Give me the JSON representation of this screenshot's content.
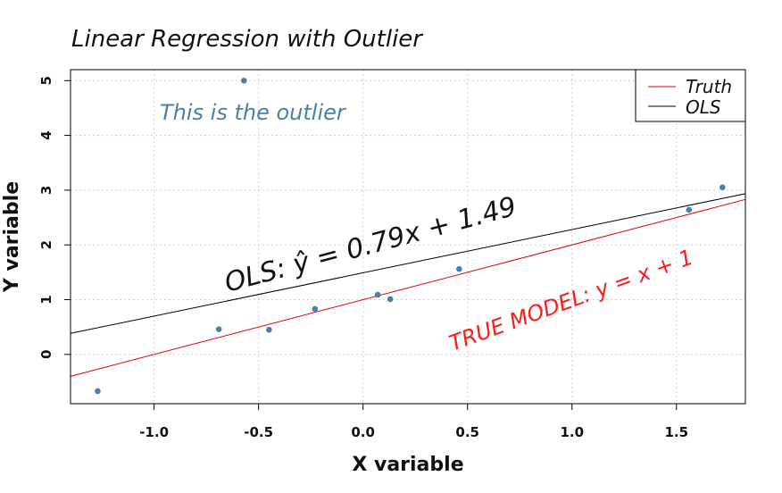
{
  "chart_data": {
    "type": "scatter",
    "title": "Linear Regression with Outlier",
    "xlabel": "X variable",
    "ylabel": "Y variable",
    "xlim": [
      -1.4,
      1.83
    ],
    "ylim": [
      -0.9,
      5.2
    ],
    "xticks": [
      -1.0,
      -0.5,
      0.0,
      0.5,
      1.0,
      1.5
    ],
    "xtick_labels": [
      "-1.0",
      "-0.5",
      "0.0",
      "0.5",
      "1.0",
      "1.5"
    ],
    "yticks": [
      0,
      1,
      2,
      3,
      4,
      5
    ],
    "ytick_labels": [
      "0",
      "1",
      "2",
      "3",
      "4",
      "5"
    ],
    "grid": true,
    "points": {
      "color": "#4b7fab",
      "x": [
        -1.27,
        -0.69,
        -0.57,
        -0.45,
        -0.23,
        0.07,
        0.13,
        0.46,
        1.56,
        1.72
      ],
      "y": [
        -0.67,
        0.46,
        5.0,
        0.45,
        0.83,
        1.09,
        1.01,
        1.56,
        2.64,
        3.05
      ]
    },
    "series": [
      {
        "name": "Truth",
        "color": "#e00000",
        "slope": 1.0,
        "intercept": 1.0
      },
      {
        "name": "OLS",
        "color": "#000000",
        "slope": 0.79,
        "intercept": 1.49
      }
    ],
    "legend": {
      "position": "top-right",
      "entries": [
        "Truth",
        "OLS"
      ]
    },
    "annotations": [
      {
        "text": "This is the outlier",
        "color": "#4b7fab"
      },
      {
        "text": "OLS: ŷ = 0.79x + 1.49",
        "color": "#000000"
      },
      {
        "text": "TRUE MODEL: y = x + 1",
        "color": "#ff1a1a"
      }
    ]
  }
}
